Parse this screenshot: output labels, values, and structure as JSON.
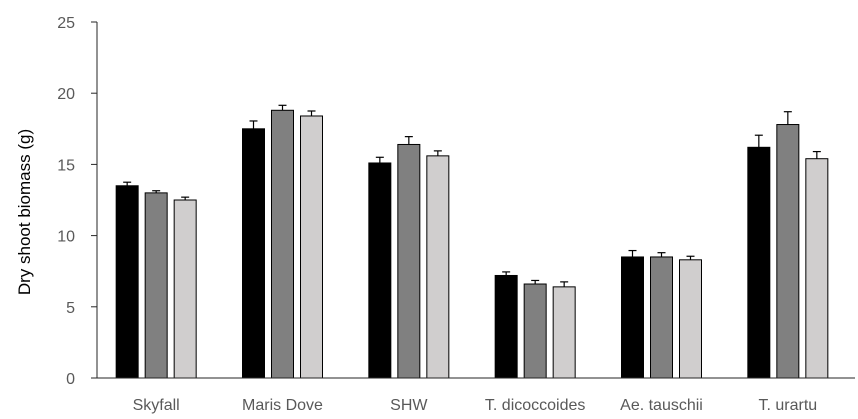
{
  "chart_data": {
    "type": "bar",
    "title": "",
    "xlabel": "",
    "ylabel": "Dry shoot biomass (g)",
    "ylim": [
      0,
      25
    ],
    "yticks": [
      0,
      5,
      10,
      15,
      20,
      25
    ],
    "grid": false,
    "legend": "none",
    "categories": [
      "Skyfall",
      "Maris Dove",
      "SHW",
      "T. dicoccoides",
      "Ae. tauschii",
      "T. urartu"
    ],
    "series": [
      {
        "values": [
          13.5,
          17.5,
          15.1,
          7.2,
          8.5,
          16.2
        ],
        "errors": [
          0.25,
          0.55,
          0.4,
          0.25,
          0.45,
          0.85
        ],
        "color": "#000000"
      },
      {
        "values": [
          13.0,
          18.8,
          16.4,
          6.6,
          8.5,
          17.8
        ],
        "errors": [
          0.15,
          0.35,
          0.55,
          0.25,
          0.3,
          0.9
        ],
        "color": "#808080"
      },
      {
        "values": [
          12.5,
          18.4,
          15.6,
          6.4,
          8.3,
          15.4
        ],
        "errors": [
          0.2,
          0.35,
          0.35,
          0.35,
          0.25,
          0.5
        ],
        "color": "#d0cece"
      }
    ]
  }
}
